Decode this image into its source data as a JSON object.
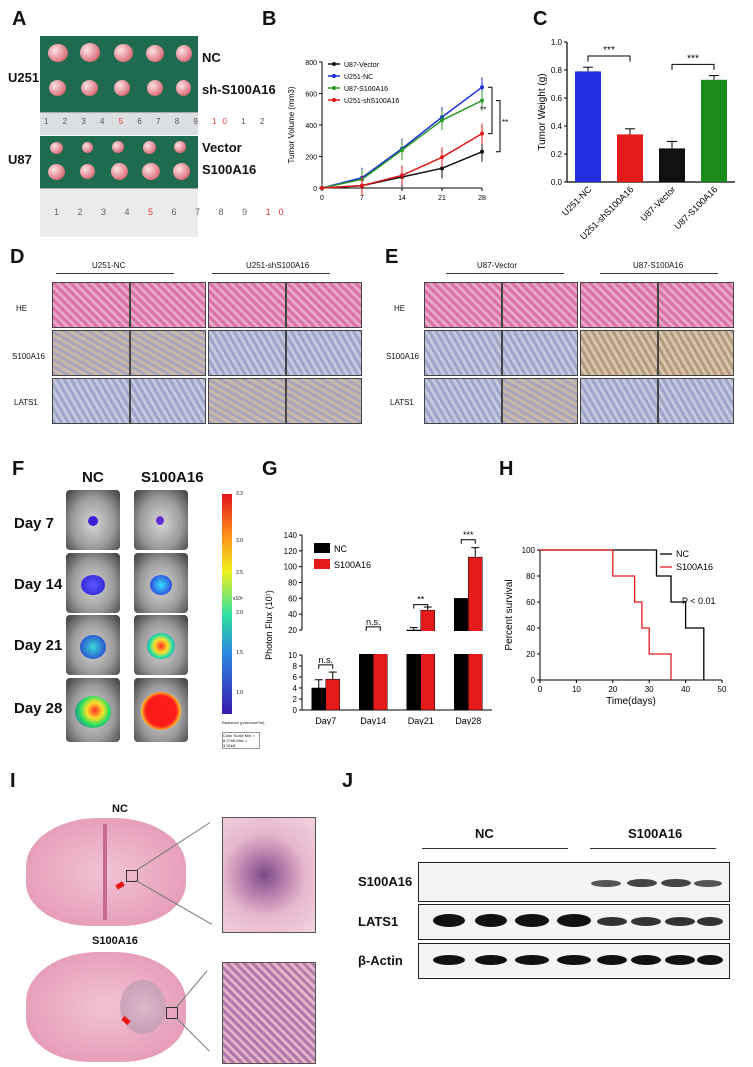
{
  "panels": {
    "A": "A",
    "B": "B",
    "C": "C",
    "D": "D",
    "E": "E",
    "F": "F",
    "G": "G",
    "H": "H",
    "I": "I",
    "J": "J"
  },
  "panelA": {
    "cell_u251": "U251",
    "cell_u87": "U87",
    "row_nc": "NC",
    "row_sh": "sh-S100A16",
    "row_vector": "Vector",
    "row_s100a16": "S100A16",
    "ruler_labels_top": [
      "1",
      "2",
      "3",
      "4",
      "5",
      "6",
      "7",
      "8",
      "9",
      "10",
      "1",
      "2"
    ],
    "ruler_labels_bottom": [
      "1",
      "2",
      "3",
      "4",
      "5",
      "6",
      "7",
      "8",
      "9",
      "10"
    ]
  },
  "panelB": {
    "chart_data": {
      "type": "line",
      "x": [
        0,
        7,
        14,
        21,
        28
      ],
      "ylabel": "Tumor Volume (mm3)",
      "ylim": [
        0,
        800
      ],
      "yticks": [
        0,
        200,
        400,
        600,
        800
      ],
      "series": [
        {
          "name": "U87-Vector",
          "color": "#111111",
          "values": [
            0,
            15,
            70,
            125,
            230
          ]
        },
        {
          "name": "U251-NC",
          "color": "#1a2fd6",
          "values": [
            0,
            65,
            250,
            450,
            640
          ]
        },
        {
          "name": "U87-S100A16",
          "color": "#2a9a2a",
          "values": [
            0,
            55,
            240,
            430,
            555
          ]
        },
        {
          "name": "U251-shS100A16",
          "color": "#e01818",
          "values": [
            0,
            15,
            80,
            195,
            345
          ]
        }
      ],
      "significance": [
        "**",
        "**"
      ]
    }
  },
  "panelC": {
    "chart_data": {
      "type": "bar",
      "categories": [
        "U251-NC",
        "U251-shS100A16",
        "U87-Vector",
        "U87-S100A16"
      ],
      "values": [
        0.79,
        0.34,
        0.24,
        0.73
      ],
      "errors": [
        0.03,
        0.04,
        0.05,
        0.03
      ],
      "colors": [
        "#1f2fe0",
        "#e51b1b",
        "#111111",
        "#1a8a1a"
      ],
      "ylabel": "Tumor Weight (g)",
      "ylim": [
        0,
        1.0
      ],
      "yticks": [
        "0.0",
        "0.2",
        "0.4",
        "0.6",
        "0.8",
        "1.0"
      ],
      "significance": [
        "***",
        "***"
      ]
    }
  },
  "panelD": {
    "col1": "U251-NC",
    "col2": "U251-shS100A16",
    "rows": [
      "HE",
      "S100A16",
      "LATS1"
    ]
  },
  "panelE": {
    "col1": "U87-Vector",
    "col2": "U87-S100A16",
    "rows": [
      "HE",
      "S100A16",
      "LATS1"
    ]
  },
  "panelF": {
    "col_nc": "NC",
    "col_s100a16": "S100A16",
    "days": [
      "Day 7",
      "Day 14",
      "Day 21",
      "Day 28"
    ],
    "scale_ticks": [
      "3.3",
      "3.0",
      "2.5",
      "2.0",
      "1.5",
      "1.0"
    ],
    "scale_exp": "x10⁸",
    "scale_units": "Radiance (p/sec/cm²/sr)",
    "scale_info": "Color Scale Min = 8.27e6 Max = 3.52e8"
  },
  "panelG": {
    "chart_data": {
      "type": "bar",
      "categories": [
        "Day7",
        "Day14",
        "Day21",
        "Day28"
      ],
      "series": [
        {
          "name": "NC",
          "color": "#000000",
          "values": [
            4,
            13,
            20,
            60
          ],
          "errors": [
            1.5,
            1.5,
            3,
            0
          ]
        },
        {
          "name": "S100A16",
          "color": "#e51b1b",
          "values": [
            5.6,
            16,
            45,
            112
          ],
          "errors": [
            1.3,
            2.5,
            4,
            12
          ]
        }
      ],
      "ylabel": "Photon Flux (10⁷)",
      "yticks_low": [
        "0",
        "2",
        "4",
        "6",
        "8",
        "10"
      ],
      "yticks_high": [
        "20",
        "40",
        "60",
        "80",
        "100",
        "120",
        "140"
      ],
      "significance": [
        "n.s.",
        "n.s.",
        "**",
        "***"
      ]
    }
  },
  "panelH": {
    "chart_data": {
      "type": "line",
      "xlabel": "Time(days)",
      "ylabel": "Percent survival",
      "xlim": [
        0,
        50
      ],
      "ylim": [
        0,
        100
      ],
      "xticks": [
        "0",
        "10",
        "20",
        "30",
        "40",
        "50"
      ],
      "yticks": [
        "0",
        "20",
        "40",
        "60",
        "80",
        "100"
      ],
      "series": [
        {
          "name": "NC",
          "color": "#000000",
          "steps": [
            [
              0,
              100
            ],
            [
              32,
              100
            ],
            [
              32,
              80
            ],
            [
              36,
              80
            ],
            [
              36,
              60
            ],
            [
              40,
              60
            ],
            [
              40,
              40
            ],
            [
              45,
              40
            ],
            [
              45,
              0
            ]
          ]
        },
        {
          "name": "S100A16",
          "color": "#e51b1b",
          "steps": [
            [
              0,
              100
            ],
            [
              20,
              100
            ],
            [
              20,
              80
            ],
            [
              26,
              80
            ],
            [
              26,
              60
            ],
            [
              28,
              60
            ],
            [
              28,
              40
            ],
            [
              30,
              40
            ],
            [
              30,
              20
            ],
            [
              36,
              20
            ],
            [
              36,
              0
            ]
          ]
        }
      ],
      "annotation": "P < 0.01"
    }
  },
  "panelI": {
    "label_nc": "NC",
    "label_s100a16": "S100A16"
  },
  "panelJ": {
    "group_nc": "NC",
    "group_s100a16": "S100A16",
    "rows": [
      "S100A16",
      "LATS1",
      "β-Actin"
    ]
  }
}
